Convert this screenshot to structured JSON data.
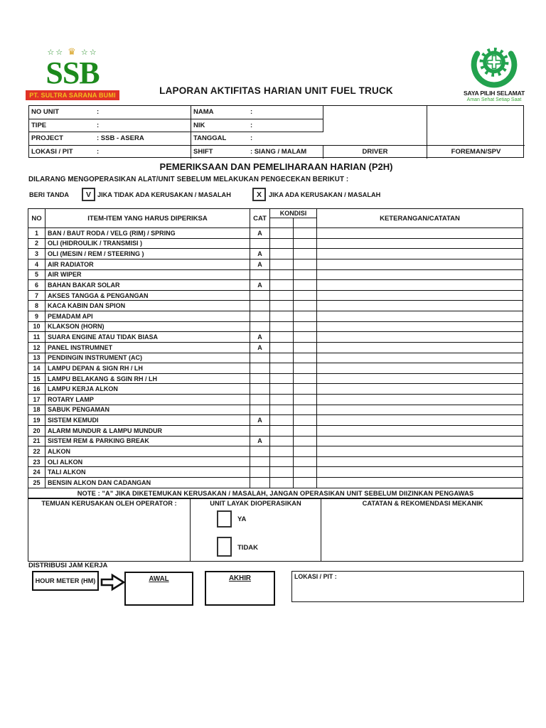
{
  "page": {
    "title": "LAPORAN AKTIFITAS HARIAN UNIT FUEL TRUCK"
  },
  "colors": {
    "ssb_green": "#1d8a1d",
    "banner_red": "#e03226",
    "banner_gold": "#f2c01e",
    "safety_green": "#22a24e"
  },
  "icons": {
    "star": "☆☆",
    "crown": "♛",
    "safety_emblem": "crescent-gear-cross"
  },
  "logo_left": {
    "name": "SSB",
    "company": "PT. SULTRA SARANA BUMI"
  },
  "logo_right": {
    "line1": "SAYA PILIH SELAMAT",
    "line2": "Aman Sehat Setiap Saat"
  },
  "info_table": {
    "rows": [
      {
        "l_label": "NO UNIT",
        "l_value": ":",
        "r_label": "NAMA",
        "r_value": ":"
      },
      {
        "l_label": "TIPE",
        "l_value": ":",
        "r_label": "NIK",
        "r_value": ":"
      },
      {
        "l_label": "PROJECT",
        "l_value": ": SSB - ASERA",
        "r_label": "TANGGAL",
        "r_value": ":"
      },
      {
        "l_label": "LOKASI / PIT",
        "l_value": ":",
        "r_label": "SHIFT",
        "r_value": ": SIANG / MALAM"
      }
    ],
    "sign_labels": [
      "DRIVER",
      "FOREMAN/SPV"
    ]
  },
  "p2h": {
    "title": "PEMERIKSAAN DAN PEMELIHARAAN HARIAN (P2H)",
    "warning": "DILARANG MENGOPERASIKAN ALAT/UNIT SEBELUM MELAKUKAN PENGECEKAN BERIKUT :",
    "mark_label": "BERI TANDA",
    "mark_ok_symbol": "V",
    "mark_ok_text": "JIKA TIDAK ADA KERUSAKAN / MASALAH",
    "mark_bad_symbol": "X",
    "mark_bad_text": "JIKA ADA KERUSAKAN / MASALAH"
  },
  "checklist": {
    "headers": {
      "no": "NO",
      "item": "ITEM-ITEM YANG HARUS DIPERIKSA",
      "cat": "CAT",
      "kondisi": "KONDISI",
      "keterangan": "KETERANGAN/CATATAN"
    },
    "rows": [
      {
        "no": "1",
        "item": "BAN / BAUT RODA / VELG (RIM) / SPRING",
        "cat": "A"
      },
      {
        "no": "2",
        "item": "OLI (HIDROULIK / TRANSMISI )",
        "cat": ""
      },
      {
        "no": "3",
        "item": "OLI (MESIN / REM / STEERING )",
        "cat": "A"
      },
      {
        "no": "4",
        "item": "AIR RADIATOR",
        "cat": "A"
      },
      {
        "no": "5",
        "item": "AIR WIPER",
        "cat": ""
      },
      {
        "no": "6",
        "item": "BAHAN BAKAR SOLAR",
        "cat": "A"
      },
      {
        "no": "7",
        "item": "AKSES TANGGA & PENGANGAN",
        "cat": ""
      },
      {
        "no": "8",
        "item": "KACA KABIN DAN SPION",
        "cat": ""
      },
      {
        "no": "9",
        "item": "PEMADAM API",
        "cat": ""
      },
      {
        "no": "10",
        "item": "KLAKSON (HORN)",
        "cat": ""
      },
      {
        "no": "11",
        "item": "SUARA ENGINE ATAU TIDAK BIASA",
        "cat": "A"
      },
      {
        "no": "12",
        "item": "PANEL INSTRUMNET",
        "cat": "A"
      },
      {
        "no": "13",
        "item": "PENDINGIN INSTRUMENT (AC)",
        "cat": ""
      },
      {
        "no": "14",
        "item": "LAMPU DEPAN & SIGN RH / LH",
        "cat": ""
      },
      {
        "no": "15",
        "item": "LAMPU BELAKANG & SGIN RH / LH",
        "cat": ""
      },
      {
        "no": "16",
        "item": "LAMPU KERJA ALKON",
        "cat": ""
      },
      {
        "no": "17",
        "item": "ROTARY LAMP",
        "cat": ""
      },
      {
        "no": "18",
        "item": "SABUK PENGAMAN",
        "cat": ""
      },
      {
        "no": "19",
        "item": "SISTEM KEMUDI",
        "cat": "A"
      },
      {
        "no": "20",
        "item": "ALARM MUNDUR & LAMPU MUNDUR",
        "cat": ""
      },
      {
        "no": "21",
        "item": "SISTEM REM & PARKING BREAK",
        "cat": "A"
      },
      {
        "no": "22",
        "item": "ALKON",
        "cat": ""
      },
      {
        "no": "23",
        "item": "OLI ALKON",
        "cat": ""
      },
      {
        "no": "24",
        "item": "TALI ALKON",
        "cat": ""
      },
      {
        "no": "25",
        "item": "BENSIN ALKON DAN CADANGAN",
        "cat": ""
      }
    ],
    "note": "NOTE  : \"A\" JIKA DIKETEMUKAN KERUSAKAN / MASALAH, JANGAN OPERASIKAN UNIT SEBELUM DIIZINKAN PENGAWAS"
  },
  "verdict": {
    "left_title": "TEMUAN KERUSAKAN OLEH OPERATOR :",
    "middle_title": "UNIT LAYAK DIOPERASIKAN",
    "yes_label": "YA",
    "no_label": "TIDAK",
    "right_title": "CATATAN & REKOMENDASI MEKANIK"
  },
  "hours": {
    "section_title": "DISTRIBUSI JAM KERJA",
    "hour_meter_label": "HOUR METER (HM)",
    "awal_label": "AWAL",
    "akhir_label": "AKHIR",
    "lokasi_label": "LOKASI / PIT :"
  }
}
